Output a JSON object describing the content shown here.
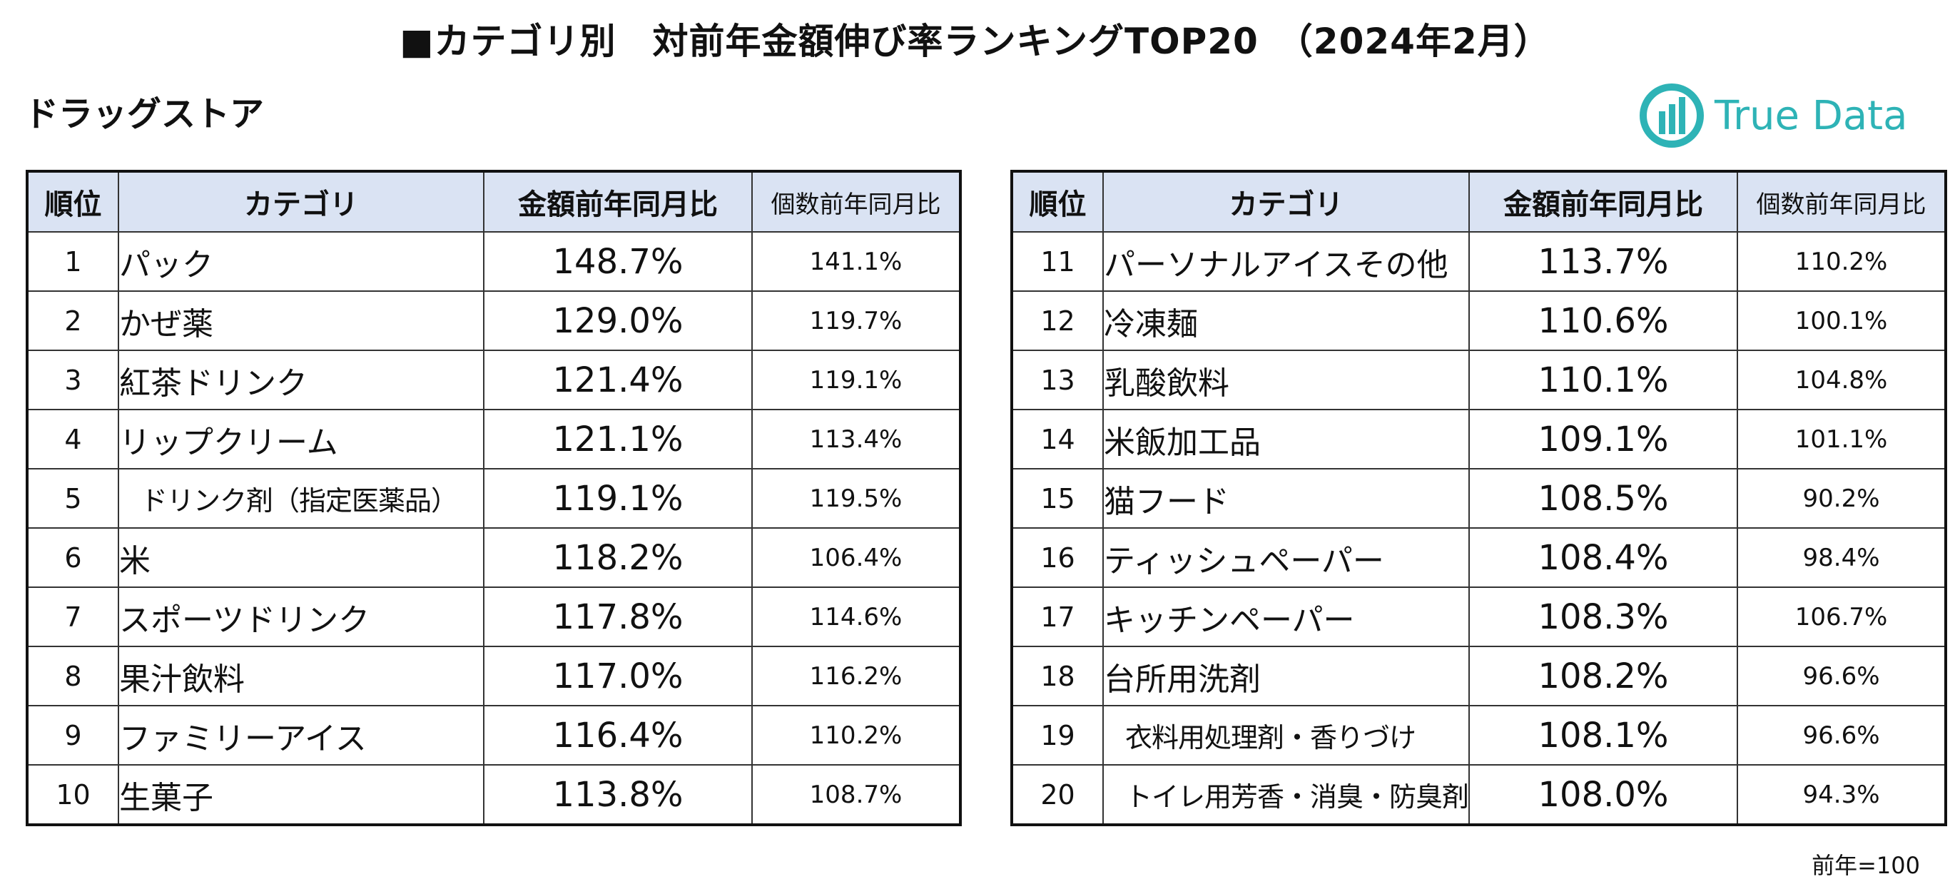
{
  "header": {
    "title": "■カテゴリ別　対前年金額伸び率ランキングTOP20　（2024年2月）",
    "subtitle": "ドラッグストア",
    "logo_text": "True Data"
  },
  "columns": {
    "rank": "順位",
    "category": "カテゴリ",
    "amount_yoy": "金額前年同月比",
    "qty_yoy": "個数前年同月比"
  },
  "left_table": [
    {
      "rank": "1",
      "category": "パック",
      "amount": "148.7%",
      "qty": "141.1%"
    },
    {
      "rank": "2",
      "category": "かぜ薬",
      "amount": "129.0%",
      "qty": "119.7%"
    },
    {
      "rank": "3",
      "category": "紅茶ドリンク",
      "amount": "121.4%",
      "qty": "119.1%"
    },
    {
      "rank": "4",
      "category": "リップクリーム",
      "amount": "121.1%",
      "qty": "113.4%"
    },
    {
      "rank": "5",
      "category": "ドリンク剤（指定医薬品）",
      "amount": "119.1%",
      "qty": "119.5%"
    },
    {
      "rank": "6",
      "category": "米",
      "amount": "118.2%",
      "qty": "106.4%"
    },
    {
      "rank": "7",
      "category": "スポーツドリンク",
      "amount": "117.8%",
      "qty": "114.6%"
    },
    {
      "rank": "8",
      "category": "果汁飲料",
      "amount": "117.0%",
      "qty": "116.2%"
    },
    {
      "rank": "9",
      "category": "ファミリーアイス",
      "amount": "116.4%",
      "qty": "110.2%"
    },
    {
      "rank": "10",
      "category": "生菓子",
      "amount": "113.8%",
      "qty": "108.7%"
    }
  ],
  "right_table": [
    {
      "rank": "11",
      "category": "パーソナルアイスその他",
      "amount": "113.7%",
      "qty": "110.2%"
    },
    {
      "rank": "12",
      "category": "冷凍麺",
      "amount": "110.6%",
      "qty": "100.1%"
    },
    {
      "rank": "13",
      "category": "乳酸飲料",
      "amount": "110.1%",
      "qty": "104.8%"
    },
    {
      "rank": "14",
      "category": "米飯加工品",
      "amount": "109.1%",
      "qty": "101.1%"
    },
    {
      "rank": "15",
      "category": "猫フード",
      "amount": "108.5%",
      "qty": "90.2%"
    },
    {
      "rank": "16",
      "category": "ティッシュペーパー",
      "amount": "108.4%",
      "qty": "98.4%"
    },
    {
      "rank": "17",
      "category": "キッチンペーパー",
      "amount": "108.3%",
      "qty": "106.7%"
    },
    {
      "rank": "18",
      "category": "台所用洗剤",
      "amount": "108.2%",
      "qty": "96.6%"
    },
    {
      "rank": "19",
      "category": "衣料用処理剤・香りづけ",
      "amount": "108.1%",
      "qty": "96.6%"
    },
    {
      "rank": "20",
      "category": "トイレ用芳香・消臭・防臭剤",
      "amount": "108.0%",
      "qty": "94.3%"
    }
  ],
  "footnote": "前年=100",
  "colors": {
    "header_bg": "#dae3f3",
    "logo_teal": "#2eb3b6",
    "border": "#111111"
  }
}
